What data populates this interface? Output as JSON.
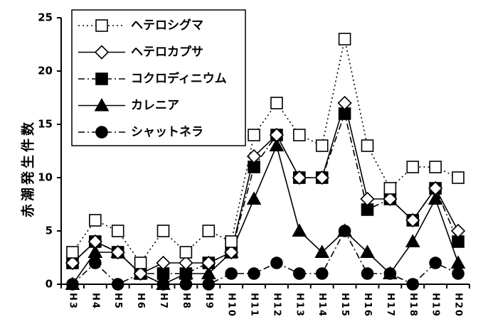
{
  "chart_data": {
    "type": "line",
    "title": "",
    "xlabel": "",
    "ylabel": "赤潮発生件数",
    "ylim": [
      0,
      25
    ],
    "yticks": [
      0,
      5,
      10,
      15,
      20,
      25
    ],
    "grid": false,
    "legend": "top-left",
    "categories": [
      "H3",
      "H4",
      "H5",
      "H6",
      "H7",
      "H8",
      "H9",
      "H10",
      "H11",
      "H12",
      "H13",
      "H14",
      "H15",
      "H16",
      "H17",
      "H18",
      "H19",
      "H20"
    ],
    "series": [
      {
        "name": "ヘテロシグマ",
        "marker": "square-open",
        "line": "dotted",
        "values": [
          3,
          6,
          5,
          2,
          5,
          3,
          5,
          4,
          14,
          17,
          14,
          13,
          23,
          13,
          9,
          11,
          11,
          10
        ]
      },
      {
        "name": "ヘテロカプサ",
        "marker": "diamond-open",
        "line": "solid",
        "values": [
          2,
          4,
          3,
          1,
          2,
          2,
          2,
          3,
          12,
          14,
          10,
          10,
          17,
          8,
          8,
          6,
          9,
          5
        ]
      },
      {
        "name": "コクロディニウム",
        "marker": "square-filled",
        "line": "dashdot",
        "values": [
          2,
          4,
          3,
          1,
          1,
          1,
          2,
          3,
          11,
          14,
          10,
          10,
          16,
          7,
          8,
          6,
          9,
          4
        ]
      },
      {
        "name": "カレニア",
        "marker": "triangle-filled",
        "line": "solid",
        "values": [
          0,
          3,
          3,
          1,
          0,
          1,
          1,
          3,
          8,
          13,
          5,
          3,
          5,
          3,
          1,
          4,
          8,
          2
        ]
      },
      {
        "name": "シャットネラ",
        "marker": "circle-filled",
        "line": "dashdot",
        "values": [
          0,
          2,
          0,
          1,
          0,
          0,
          0,
          1,
          1,
          2,
          1,
          1,
          5,
          1,
          1,
          0,
          2,
          1
        ]
      }
    ]
  }
}
